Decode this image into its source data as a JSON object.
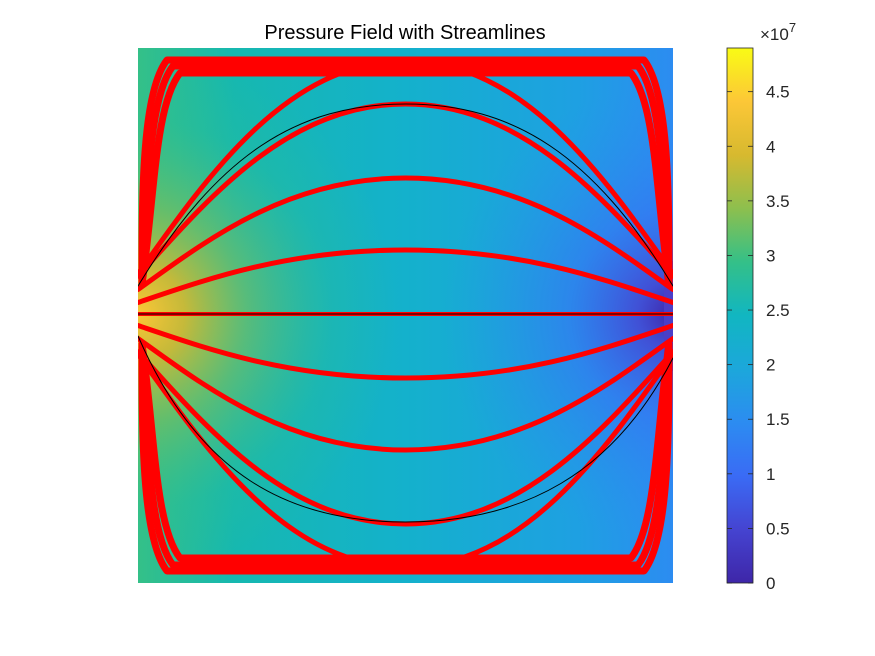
{
  "chart_data": {
    "type": "heatmap",
    "title": "Pressure Field with Streamlines",
    "xlabel": "",
    "ylabel": "",
    "colorbar": {
      "ticks": [
        "0",
        "0.5",
        "1",
        "1.5",
        "2",
        "2.5",
        "3",
        "3.5",
        "4",
        "4.5"
      ],
      "tick_values": [
        0,
        0.5,
        1,
        1.5,
        2,
        2.5,
        3,
        3.5,
        4,
        4.5
      ],
      "range": [
        0,
        4.9
      ],
      "exponent_label": "×10",
      "exponent_power": "7",
      "colormap": "parula",
      "colors": [
        "#3e26a8",
        "#4544d1",
        "#3a6bf5",
        "#2c8cf1",
        "#1ca7db",
        "#11b6c1",
        "#34c088",
        "#8dbf4e",
        "#d7b92f",
        "#fcc737",
        "#f9fb15"
      ]
    },
    "field": {
      "description": "pressure highest at left inlet (y centre), lowest at right outlet",
      "inlet_pressure": 4.9,
      "outlet_pressure": 0.2,
      "mid_pressure": 2.2
    },
    "streamlines": {
      "color": "#ff0000",
      "count": 15,
      "highlight_color": "#000000"
    }
  }
}
